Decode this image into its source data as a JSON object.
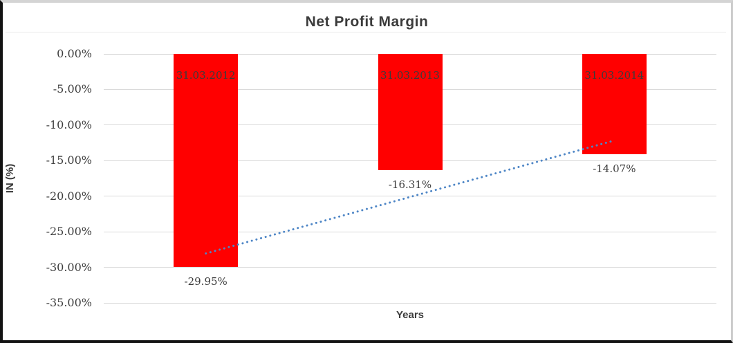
{
  "chart_data": {
    "type": "bar",
    "title": "Net Profit Margin",
    "xlabel": "Years",
    "ylabel": "IN (%)",
    "categories": [
      "31.03.2012",
      "31.03.2013",
      "31.03.2014"
    ],
    "values": [
      -29.95,
      -16.31,
      -14.07
    ],
    "value_labels": [
      "-29.95%",
      "-16.31%",
      "-14.07%"
    ],
    "ylim": [
      -35,
      0
    ],
    "ytick_labels": [
      "0.00%",
      "-5.00%",
      "-10.00%",
      "-15.00%",
      "-20.00%",
      "-25.00%",
      "-30.00%",
      "-35.00%"
    ],
    "grid": true,
    "legend": false,
    "bar_color": "#ff0000",
    "gridline_color": "#d9d9d9",
    "text_color": "#3c3c3c",
    "trendline": {
      "type": "linear",
      "style": "dotted",
      "color": "#4e86c6",
      "start_value": -28.05,
      "end_value": -12.17
    }
  }
}
